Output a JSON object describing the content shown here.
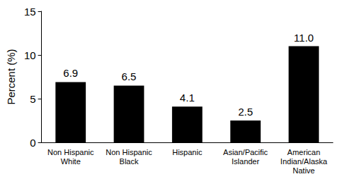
{
  "chart_data": {
    "type": "bar",
    "y_label": "Percent (%)",
    "categories": [
      "Non Hispanic\nWhite",
      "Non Hispanic\nBlack",
      "Hispanic",
      "Asian/Pacific\nIslander",
      "American\nIndian/Alaska\nNative"
    ],
    "values": [
      6.9,
      6.5,
      4.1,
      2.5,
      11.0
    ],
    "value_labels": [
      "6.9",
      "6.5",
      "4.1",
      "2.5",
      "11.0"
    ],
    "color": "#000000",
    "ylim": [
      0,
      15
    ],
    "yticks": [
      0,
      5,
      10,
      15
    ],
    "grid": false,
    "data_labels": true
  }
}
